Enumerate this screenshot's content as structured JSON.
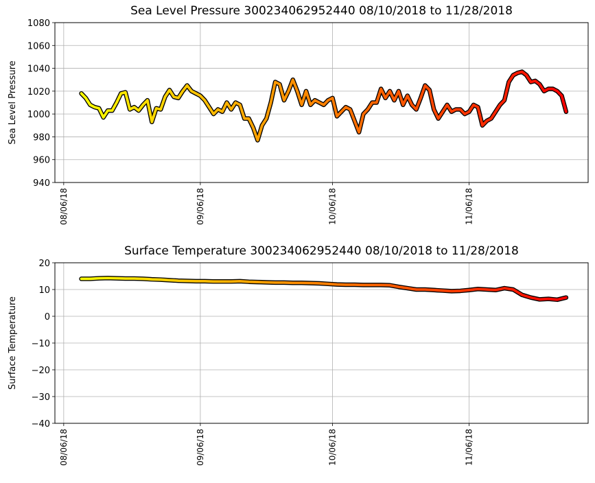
{
  "chart_data": [
    {
      "type": "scatter",
      "title": "Sea Level Pressure 300234062952440  08/10/2018 to 11/28/2018",
      "y_label": "Sea Level Pressure",
      "color_range": [
        "#ffff00",
        "#ff0000"
      ],
      "edge_color": "#000000",
      "grid": true,
      "xlim": [
        "2018-08-04",
        "2018-12-03"
      ],
      "xticks": [
        {
          "value": "2018-08-06",
          "label": "08/06/18"
        },
        {
          "value": "2018-09-06",
          "label": "09/06/18"
        },
        {
          "value": "2018-10-06",
          "label": "10/06/18"
        },
        {
          "value": "2018-11-06",
          "label": "11/06/18"
        }
      ],
      "ylim": [
        940,
        1080
      ],
      "yticks": [
        940,
        960,
        980,
        1000,
        1020,
        1040,
        1060,
        1080
      ],
      "x": [
        "2018-08-10",
        "2018-08-11",
        "2018-08-12",
        "2018-08-13",
        "2018-08-14",
        "2018-08-15",
        "2018-08-16",
        "2018-08-17",
        "2018-08-18",
        "2018-08-19",
        "2018-08-20",
        "2018-08-21",
        "2018-08-22",
        "2018-08-23",
        "2018-08-24",
        "2018-08-25",
        "2018-08-26",
        "2018-08-27",
        "2018-08-28",
        "2018-08-29",
        "2018-08-30",
        "2018-08-31",
        "2018-09-01",
        "2018-09-02",
        "2018-09-03",
        "2018-09-04",
        "2018-09-05",
        "2018-09-06",
        "2018-09-07",
        "2018-09-08",
        "2018-09-09",
        "2018-09-10",
        "2018-09-11",
        "2018-09-12",
        "2018-09-13",
        "2018-09-14",
        "2018-09-15",
        "2018-09-16",
        "2018-09-17",
        "2018-09-18",
        "2018-09-19",
        "2018-09-20",
        "2018-09-21",
        "2018-09-22",
        "2018-09-23",
        "2018-09-24",
        "2018-09-25",
        "2018-09-26",
        "2018-09-27",
        "2018-09-28",
        "2018-09-29",
        "2018-09-30",
        "2018-10-01",
        "2018-10-02",
        "2018-10-03",
        "2018-10-04",
        "2018-10-05",
        "2018-10-06",
        "2018-10-07",
        "2018-10-08",
        "2018-10-09",
        "2018-10-10",
        "2018-10-11",
        "2018-10-12",
        "2018-10-13",
        "2018-10-14",
        "2018-10-15",
        "2018-10-16",
        "2018-10-17",
        "2018-10-18",
        "2018-10-19",
        "2018-10-20",
        "2018-10-21",
        "2018-10-22",
        "2018-10-23",
        "2018-10-24",
        "2018-10-25",
        "2018-10-26",
        "2018-10-27",
        "2018-10-28",
        "2018-10-29",
        "2018-10-30",
        "2018-10-31",
        "2018-11-01",
        "2018-11-02",
        "2018-11-03",
        "2018-11-04",
        "2018-11-05",
        "2018-11-06",
        "2018-11-07",
        "2018-11-08",
        "2018-11-09",
        "2018-11-10",
        "2018-11-11",
        "2018-11-12",
        "2018-11-13",
        "2018-11-14",
        "2018-11-15",
        "2018-11-16",
        "2018-11-17",
        "2018-11-18",
        "2018-11-19",
        "2018-11-20",
        "2018-11-21",
        "2018-11-22",
        "2018-11-23",
        "2018-11-24",
        "2018-11-25",
        "2018-11-26",
        "2018-11-27",
        "2018-11-28"
      ],
      "values": [
        1018,
        1014,
        1008,
        1006,
        1005,
        997,
        1003,
        1003,
        1010,
        1018,
        1019,
        1004,
        1006,
        1003,
        1008,
        1012,
        993,
        1005,
        1004,
        1015,
        1021,
        1015,
        1014,
        1020,
        1025,
        1020,
        1018,
        1016,
        1012,
        1006,
        1000,
        1004,
        1002,
        1010,
        1004,
        1010,
        1008,
        996,
        996,
        988,
        977,
        990,
        996,
        1010,
        1028,
        1026,
        1012,
        1020,
        1030,
        1020,
        1008,
        1020,
        1008,
        1012,
        1010,
        1008,
        1012,
        1014,
        998,
        1002,
        1006,
        1004,
        994,
        984,
        1000,
        1004,
        1010,
        1010,
        1022,
        1014,
        1020,
        1012,
        1020,
        1008,
        1016,
        1008,
        1004,
        1014,
        1025,
        1021,
        1004,
        996,
        1002,
        1008,
        1002,
        1004,
        1004,
        1000,
        1002,
        1008,
        1006,
        990,
        994,
        996,
        1002,
        1008,
        1012,
        1028,
        1034,
        1036,
        1037,
        1034,
        1028,
        1029,
        1026,
        1020,
        1022,
        1022,
        1020,
        1016,
        1002
      ]
    },
    {
      "type": "scatter",
      "title": "Surface Temperature 300234062952440  08/10/2018 to 11/28/2018",
      "y_label": "Surface Temperature",
      "color_range": [
        "#ffff00",
        "#ff0000"
      ],
      "edge_color": "#000000",
      "grid": true,
      "xlim": [
        "2018-08-04",
        "2018-12-03"
      ],
      "xticks": [
        {
          "value": "2018-08-06",
          "label": "08/06/18"
        },
        {
          "value": "2018-09-06",
          "label": "09/06/18"
        },
        {
          "value": "2018-10-06",
          "label": "10/06/18"
        },
        {
          "value": "2018-11-06",
          "label": "11/06/18"
        }
      ],
      "ylim": [
        -40,
        20
      ],
      "yticks": [
        {
          "value": -40,
          "label": "−40"
        },
        {
          "value": -30,
          "label": "−30"
        },
        {
          "value": -20,
          "label": "−20"
        },
        {
          "value": -10,
          "label": "−10"
        },
        0,
        10,
        20
      ],
      "x": [
        "2018-08-10",
        "2018-08-12",
        "2018-08-14",
        "2018-08-16",
        "2018-08-18",
        "2018-08-20",
        "2018-08-22",
        "2018-08-24",
        "2018-08-26",
        "2018-08-28",
        "2018-08-30",
        "2018-09-01",
        "2018-09-03",
        "2018-09-05",
        "2018-09-07",
        "2018-09-09",
        "2018-09-11",
        "2018-09-13",
        "2018-09-15",
        "2018-09-17",
        "2018-09-19",
        "2018-09-21",
        "2018-09-23",
        "2018-09-25",
        "2018-09-27",
        "2018-09-29",
        "2018-10-01",
        "2018-10-03",
        "2018-10-05",
        "2018-10-07",
        "2018-10-09",
        "2018-10-11",
        "2018-10-13",
        "2018-10-15",
        "2018-10-17",
        "2018-10-19",
        "2018-10-21",
        "2018-10-23",
        "2018-10-25",
        "2018-10-27",
        "2018-10-29",
        "2018-10-31",
        "2018-11-02",
        "2018-11-04",
        "2018-11-06",
        "2018-11-08",
        "2018-11-10",
        "2018-11-12",
        "2018-11-14",
        "2018-11-16",
        "2018-11-18",
        "2018-11-20",
        "2018-11-22",
        "2018-11-24",
        "2018-11-26",
        "2018-11-28"
      ],
      "values": [
        14,
        14,
        14.2,
        14.3,
        14.2,
        14.1,
        14.1,
        14.0,
        13.8,
        13.7,
        13.5,
        13.3,
        13.2,
        13.1,
        13.1,
        13.0,
        13.0,
        13.0,
        13.1,
        12.9,
        12.8,
        12.7,
        12.6,
        12.6,
        12.5,
        12.5,
        12.4,
        12.3,
        12.1,
        11.9,
        11.8,
        11.8,
        11.7,
        11.7,
        11.7,
        11.6,
        11.0,
        10.5,
        10.0,
        10.0,
        9.8,
        9.6,
        9.4,
        9.5,
        9.8,
        10.2,
        10.0,
        9.8,
        10.5,
        10.0,
        8.0,
        7.0,
        6.3,
        6.5,
        6.2,
        7.0
      ]
    }
  ]
}
